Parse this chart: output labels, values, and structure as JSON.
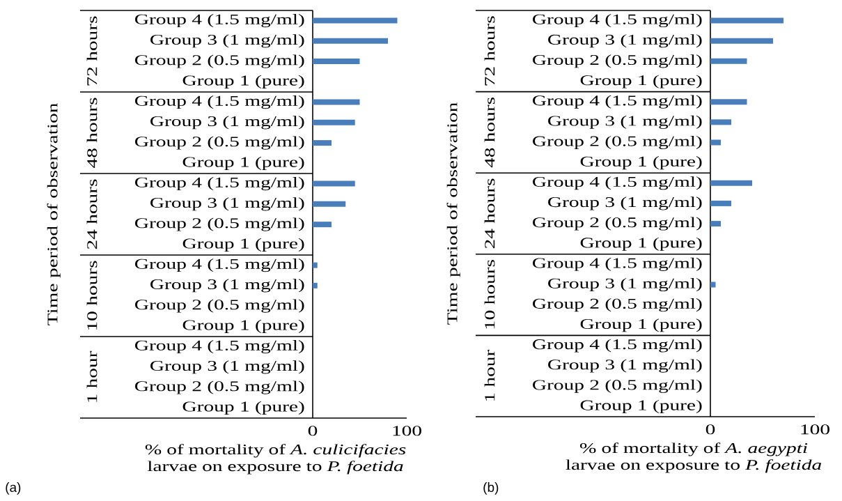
{
  "chart_data": [
    {
      "type": "bar",
      "orientation": "horizontal",
      "color": "#4a7ebb",
      "categories": [
        "Group 4 (1.5 mg/ml)",
        "Group 3 (1 mg/ml)",
        "Group 2 (0.5 mg/ml)",
        "Group 1 (pure)",
        "Group 4 (1.5 mg/ml)",
        "Group 3 (1 mg/ml)",
        "Group 2 (0.5 mg/ml)",
        "Group 1 (pure)",
        "Group 4 (1.5 mg/ml)",
        "Group 3 (1 mg/ml)",
        "Group 2 (0.5 mg/ml)",
        "Group 1 (pure)",
        "Group 4 (1.5 mg/ml)",
        "Group 3 (1 mg/ml)",
        "Group 2 (0.5 mg/ml)",
        "Group 1 (pure)",
        "Group 4 (1.5 mg/ml)",
        "Group 3 (1 mg/ml)",
        "Group 2 (0.5 mg/ml)",
        "Group 1 (pure)"
      ],
      "values": [
        90,
        80,
        50,
        0,
        50,
        45,
        20,
        0,
        45,
        35,
        20,
        0,
        5,
        5,
        0,
        0,
        0,
        0,
        0,
        0
      ],
      "xlim": [
        0,
        100
      ],
      "xticks": [
        0,
        100
      ],
      "xlabel": "% of mortality of *A. culicifacies* larvae on exposure to *P. foetida*",
      "ylabel": "Time period of observation",
      "annotations": [
        "(a)",
        "72 hours",
        "48 hours",
        "24 hours",
        "10 hours",
        "1 hour"
      ]
    },
    {
      "type": "bar",
      "orientation": "horizontal",
      "color": "#4a7ebb",
      "categories": [
        "Group 4 (1.5 mg/ml)",
        "Group 3 (1 mg/ml)",
        "Group 2 (0.5 mg/ml)",
        "Group 1 (pure)",
        "Group 4 (1.5 mg/ml)",
        "Group 3 (1 mg/ml)",
        "Group 2 (0.5 mg/ml)",
        "Group 1 (pure)",
        "Group 4 (1.5 mg/ml)",
        "Group 3 (1 mg/ml)",
        "Group 2 (0.5 mg/ml)",
        "Group 1 (pure)",
        "Group 4 (1.5 mg/ml)",
        "Group 3 (1 mg/ml)",
        "Group 2 (0.5 mg/ml)",
        "Group 1 (pure)",
        "Group 4 (1.5 mg/ml)",
        "Group 3 (1 mg/ml)",
        "Group 2 (0.5 mg/ml)",
        "Group 1 (pure)"
      ],
      "values": [
        70,
        60,
        35,
        0,
        35,
        20,
        10,
        0,
        40,
        20,
        10,
        0,
        0,
        5,
        0,
        0,
        0,
        0,
        0,
        0
      ],
      "xlim": [
        0,
        100
      ],
      "xticks": [
        0,
        100
      ],
      "xlabel": "% of mortality of *A. aegypti* larvae on exposure to *P. foetida*",
      "ylabel": "Time period of observation",
      "annotations": [
        "(b)",
        "72 hours",
        "48 hours",
        "24 hours",
        "10 hours",
        "1 hour"
      ]
    }
  ]
}
